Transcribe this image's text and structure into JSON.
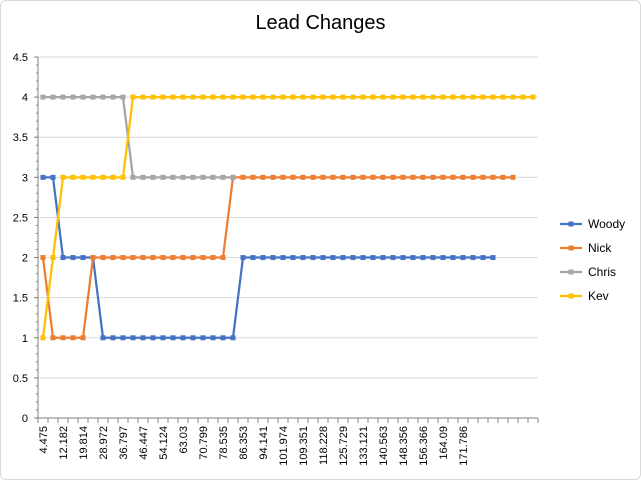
{
  "chart_data": {
    "type": "line",
    "title": "Lead Changes",
    "xlabel": "",
    "ylabel": "",
    "ylim": [
      0,
      4.5
    ],
    "y_ticks": [
      "0",
      "0.5",
      "1",
      "1.5",
      "2",
      "2.5",
      "3",
      "3.5",
      "4",
      "4.5"
    ],
    "x_tick_labels": [
      "4.475",
      "12.182",
      "19.814",
      "28.972",
      "36.797",
      "46.447",
      "54.124",
      "63.03",
      "70.799",
      "78.535",
      "86.353",
      "94.141",
      "101.974",
      "109.351",
      "118.228",
      "125.729",
      "133.121",
      "140.563",
      "148.356",
      "156.366",
      "164.09",
      "171.786"
    ],
    "grid": true,
    "legend_position": "right",
    "series": [
      {
        "name": "Woody",
        "color": "#4472C4",
        "values": [
          3,
          3,
          2,
          2,
          2,
          2,
          1,
          1,
          1,
          1,
          1,
          1,
          1,
          1,
          1,
          1,
          1,
          1,
          1,
          1,
          2,
          2,
          2,
          2,
          2,
          2,
          2,
          2,
          2,
          2,
          2,
          2,
          2,
          2,
          2,
          2,
          2,
          2,
          2,
          2,
          2,
          2,
          2,
          2,
          2,
          2
        ]
      },
      {
        "name": "Nick",
        "color": "#ED7D31",
        "values": [
          2,
          1,
          1,
          1,
          1,
          2,
          2,
          2,
          2,
          2,
          2,
          2,
          2,
          2,
          2,
          2,
          2,
          2,
          2,
          3,
          3,
          3,
          3,
          3,
          3,
          3,
          3,
          3,
          3,
          3,
          3,
          3,
          3,
          3,
          3,
          3,
          3,
          3,
          3,
          3,
          3,
          3,
          3,
          3,
          3,
          3,
          3,
          3
        ]
      },
      {
        "name": "Chris",
        "color": "#A5A5A5",
        "values": [
          4,
          4,
          4,
          4,
          4,
          4,
          4,
          4,
          4,
          3,
          3,
          3,
          3,
          3,
          3,
          3,
          3,
          3,
          3,
          3
        ]
      },
      {
        "name": "Kev",
        "color": "#FFC000",
        "values": [
          1,
          2,
          3,
          3,
          3,
          3,
          3,
          3,
          3,
          4,
          4,
          4,
          4,
          4,
          4,
          4,
          4,
          4,
          4,
          4,
          4,
          4,
          4,
          4,
          4,
          4,
          4,
          4,
          4,
          4,
          4,
          4,
          4,
          4,
          4,
          4,
          4,
          4,
          4,
          4,
          4,
          4,
          4,
          4,
          4,
          4,
          4,
          4,
          4,
          4
        ]
      }
    ]
  }
}
